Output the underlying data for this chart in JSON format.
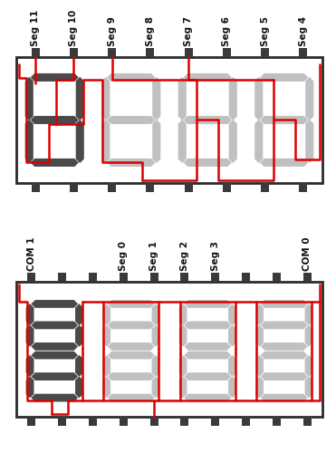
{
  "bg_color": "#ffffff",
  "border_color": "#2a2a2a",
  "pin_color": "#3a3a3a",
  "seg_active_color": "#4a4a4a",
  "seg_inactive_color": "#c0c0c0",
  "seg_inactive_light": "#d8d8d8",
  "red": "#dd0000",
  "top_labels": [
    "Seg 11",
    "Seg 10",
    "Seg 9",
    "Seg 8",
    "Seg 7",
    "Seg 6",
    "Seg 5",
    "Seg 4"
  ],
  "bot_labels": [
    "COM 1",
    "Seg 0",
    "Seg 1",
    "Seg 2",
    "Seg 3",
    "COM 0"
  ],
  "label_fontsize": 7.5,
  "label_color": "#111111"
}
